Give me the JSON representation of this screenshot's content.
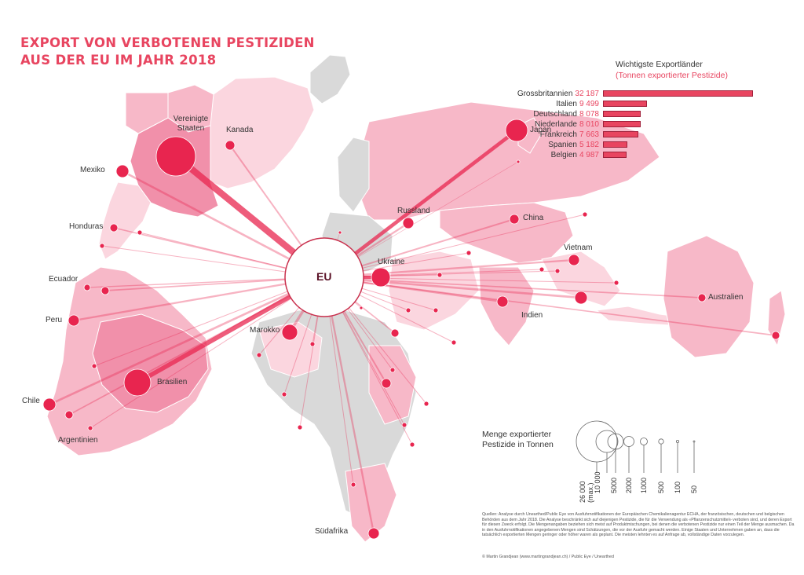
{
  "title": {
    "line1": "EXPORT VON VERBOTENEN PESTIZIDEN",
    "line2": "AUS DER EU IM JAHR 2018"
  },
  "ranking": {
    "title": "Wichtigste Exportländer",
    "subtitle": "(Tonnen exportierter Pestizide)",
    "rows": [
      {
        "name": "Grossbritannien",
        "value_text": "32 187",
        "value": 32187
      },
      {
        "name": "Italien",
        "value_text": "9 499",
        "value": 9499
      },
      {
        "name": "Deutschland",
        "value_text": "8 078",
        "value": 8078
      },
      {
        "name": "Niederlande",
        "value_text": "8 010",
        "value": 8010
      },
      {
        "name": "Frankreich",
        "value_text": "7 663",
        "value": 7663
      },
      {
        "name": "Spanien",
        "value_text": "5 182",
        "value": 5182
      },
      {
        "name": "Belgien",
        "value_text": "4 987",
        "value": 4987
      }
    ]
  },
  "hub": {
    "label": "EU"
  },
  "countries": {
    "usa": "Vereinigte Staaten",
    "kanada": "Kanada",
    "mexiko": "Mexiko",
    "honduras": "Honduras",
    "ecuador": "Ecuador",
    "peru": "Peru",
    "chile": "Chile",
    "argentinien": "Argentinien",
    "brasilien": "Brasilien",
    "marokko": "Marokko",
    "suedafrika": "Südafrika",
    "ukraine": "Ukraine",
    "russland": "Russland",
    "china": "China",
    "japan": "Japan",
    "vietnam": "Vietnam",
    "indien": "Indien",
    "australien": "Australien"
  },
  "size_legend": {
    "title_line1": "Menge exportierter",
    "title_line2": "Pestizide in Tonnen",
    "ticks": [
      "26 000 (max.)",
      "10 000",
      "5000",
      "2000",
      "1000",
      "500",
      "100",
      "50"
    ]
  },
  "sources": "Quellen: Analyse durch Unearthed/Public Eye von Ausfuhrnotifikationen der Europäischen Chemikalienagentur ECHA, der französischen, deutschen und belgischen Behörden aus dem Jahr 2018. Die Analyse beschränkt sich auf diejenigen Pestizide, die für die Verwendung als «Pflanzenschutzmittel» verboten sind, und deren Export für diesen Zweck erfolgt. Die Mengenangaben beziehen sich meist auf Produktmischungen, bei denen die verbotenen Pestizide nur einen Teil der Menge ausmachen. Da in den Ausfuhrnotifikationen angegebenen Mengen sind Schätzungen, die vor der Ausfuhr gemacht werden. Einige Staaten und Unternehmen gaben an, dass die tatsächlich exportierten Mengen geringer oder höher waren als geplant. Die meisten lehnten es auf Anfrage ab, vollständige Daten vorzulegen.",
  "credit": "© Martin Grandjean (www.martingrandjean.ch) / Public Eye / Unearthed",
  "colors": {
    "accent": "#e84560",
    "dot": "#e8254f",
    "land_grey": "#d9d9d9",
    "land_light": "#fbd6df",
    "land_mid": "#f7b8c8",
    "land_dark": "#f190aa"
  }
}
